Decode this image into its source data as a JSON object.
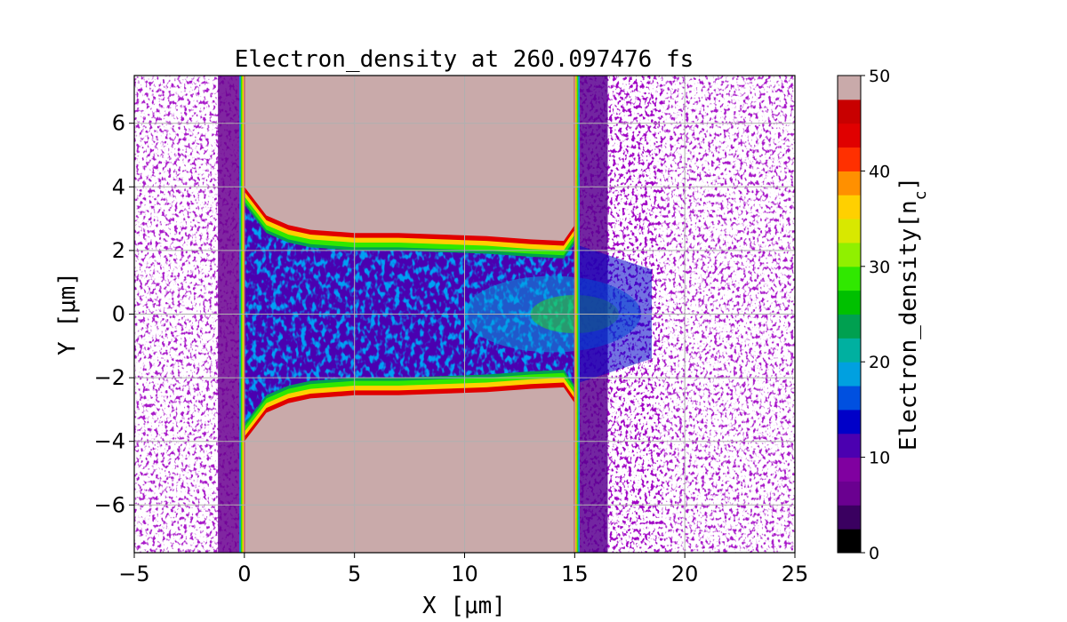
{
  "chart_data": {
    "type": "heatmap",
    "title": "Electron_density at 260.097476 fs",
    "xlabel": "X [μm]",
    "ylabel": "Y [μm]",
    "colorbar_label": "Electron_density[n_c]",
    "xlim": [
      -5,
      25
    ],
    "ylim": [
      -7.5,
      7.5
    ],
    "x_ticks": [
      -5,
      0,
      5,
      10,
      15,
      20,
      25
    ],
    "x_tick_labels": [
      "−5",
      "0",
      "5",
      "10",
      "15",
      "20",
      "25"
    ],
    "y_ticks": [
      -6,
      -4,
      -2,
      0,
      2,
      4,
      6
    ],
    "y_tick_labels": [
      "−6",
      "−4",
      "−2",
      "0",
      "2",
      "4",
      "6"
    ],
    "clim": [
      0,
      50
    ],
    "colorbar_ticks": [
      0,
      10,
      20,
      30,
      40,
      50
    ],
    "grid": true,
    "colormap": [
      "#000000",
      "#3a0060",
      "#6a0090",
      "#8000a0",
      "#4b00b0",
      "#0000c8",
      "#0050e0",
      "#00a0e0",
      "#00b0a0",
      "#00a050",
      "#00c000",
      "#30e800",
      "#90f000",
      "#d8e800",
      "#ffd000",
      "#ff9000",
      "#ff3000",
      "#e00000",
      "#c80000",
      "#c9aaaa"
    ],
    "regions": [
      {
        "name": "target-upper",
        "x": [
          0,
          15
        ],
        "y_from_boundary": "upper",
        "value": 50
      },
      {
        "name": "target-lower",
        "x": [
          0,
          15
        ],
        "y_from_boundary": "lower",
        "value": 50
      }
    ],
    "channel_boundary": {
      "x": [
        0,
        1,
        2,
        3,
        5,
        7,
        9,
        11,
        13,
        14.5,
        15
      ],
      "half_width": [
        4.0,
        3.1,
        2.8,
        2.65,
        2.55,
        2.55,
        2.5,
        2.45,
        2.35,
        2.3,
        2.8
      ]
    }
  }
}
